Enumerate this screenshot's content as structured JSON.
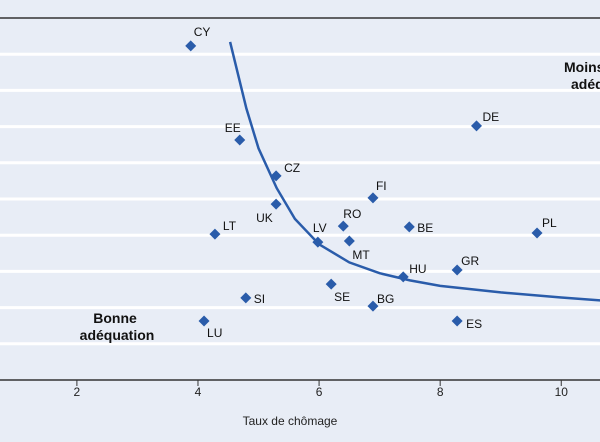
{
  "chart_data": {
    "type": "scatter",
    "title": "",
    "xlabel": "Taux de chômage",
    "ylabel": "",
    "xlim": [
      0.73,
      10.64
    ],
    "ylim": [
      0,
      10
    ],
    "grid": "horizontal",
    "x_ticks": [
      2,
      4,
      6,
      8,
      10
    ],
    "y_gridlines": [
      1,
      2,
      3,
      4,
      5,
      6,
      7,
      8,
      9
    ],
    "colors": {
      "marker": "#2a5caa",
      "curve": "#2a5caa",
      "grid": "#ffffff",
      "background": "#e8edf6",
      "axis": "#333333"
    },
    "points": [
      {
        "label": "CY",
        "x": 3.88,
        "y": 9.23
      },
      {
        "label": "EE",
        "x": 4.69,
        "y": 6.63
      },
      {
        "label": "CZ",
        "x": 5.29,
        "y": 5.64
      },
      {
        "label": "UK",
        "x": 5.29,
        "y": 4.86
      },
      {
        "label": "LT",
        "x": 4.28,
        "y": 4.03
      },
      {
        "label": "LV",
        "x": 5.98,
        "y": 3.81
      },
      {
        "label": "RO",
        "x": 6.4,
        "y": 4.25
      },
      {
        "label": "MT",
        "x": 6.5,
        "y": 3.84
      },
      {
        "label": "FI",
        "x": 6.89,
        "y": 5.03
      },
      {
        "label": "BE",
        "x": 7.49,
        "y": 4.23
      },
      {
        "label": "DE",
        "x": 8.6,
        "y": 7.02
      },
      {
        "label": "PL",
        "x": 9.6,
        "y": 4.06
      },
      {
        "label": "HU",
        "x": 7.39,
        "y": 2.85
      },
      {
        "label": "GR",
        "x": 8.28,
        "y": 3.04
      },
      {
        "label": "SE",
        "x": 6.2,
        "y": 2.65
      },
      {
        "label": "BG",
        "x": 6.89,
        "y": 2.04
      },
      {
        "label": "SI",
        "x": 4.79,
        "y": 2.27
      },
      {
        "label": "LU",
        "x": 4.1,
        "y": 1.63
      },
      {
        "label": "ES",
        "x": 8.28,
        "y": 1.63
      }
    ],
    "curve": [
      [
        4.53,
        9.34
      ],
      [
        4.8,
        7.5
      ],
      [
        5.0,
        6.4
      ],
      [
        5.3,
        5.3
      ],
      [
        5.6,
        4.45
      ],
      [
        6.0,
        3.75
      ],
      [
        6.5,
        3.25
      ],
      [
        7.0,
        2.95
      ],
      [
        7.5,
        2.75
      ],
      [
        8.0,
        2.6
      ],
      [
        9.0,
        2.42
      ],
      [
        10.0,
        2.28
      ],
      [
        10.65,
        2.2
      ]
    ],
    "annotations": {
      "good_fit": [
        "Bonne",
        "adéquation"
      ],
      "poor_fit": [
        "Moins bonne",
        "adéquation"
      ]
    }
  }
}
